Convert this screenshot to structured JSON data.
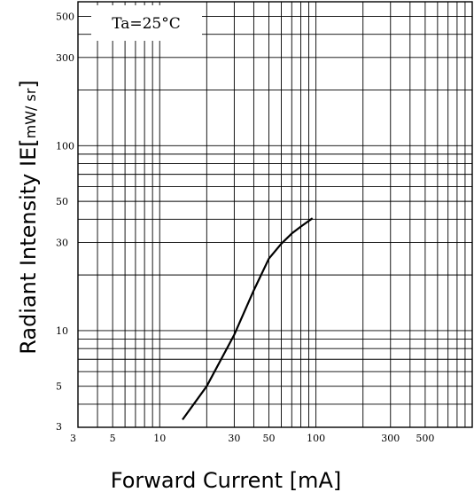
{
  "chart_data": {
    "type": "line",
    "xscale": "log",
    "yscale": "log",
    "xlim": [
      3,
      1000
    ],
    "ylim": [
      3,
      600
    ],
    "grid": true,
    "xlabel": "Forward Current [mA]",
    "ylabel": {
      "main": "Radiant Intensity IE[",
      "unit": "mW/ sr",
      "close": "]"
    },
    "annotation": "Ta=25°C",
    "xticks": [
      {
        "value": 3,
        "label": "3"
      },
      {
        "value": 5,
        "label": "5"
      },
      {
        "value": 10,
        "label": "10"
      },
      {
        "value": 30,
        "label": "30"
      },
      {
        "value": 50,
        "label": "50"
      },
      {
        "value": 100,
        "label": "100"
      },
      {
        "value": 300,
        "label": "300"
      },
      {
        "value": 500,
        "label": "500"
      }
    ],
    "yticks": [
      {
        "value": 3,
        "label": "3"
      },
      {
        "value": 5,
        "label": "5"
      },
      {
        "value": 10,
        "label": "10"
      },
      {
        "value": 30,
        "label": "30"
      },
      {
        "value": 50,
        "label": "50"
      },
      {
        "value": 100,
        "label": "100"
      },
      {
        "value": 300,
        "label": "300"
      },
      {
        "value": 500,
        "label": "500"
      }
    ],
    "series": [
      {
        "color": "#000000",
        "x": [
          14,
          20,
          30,
          40,
          50,
          60,
          70,
          80,
          95
        ],
        "y": [
          3.3,
          5.0,
          9.5,
          16.5,
          24.5,
          29.5,
          33.5,
          36.5,
          40.5
        ]
      }
    ]
  }
}
